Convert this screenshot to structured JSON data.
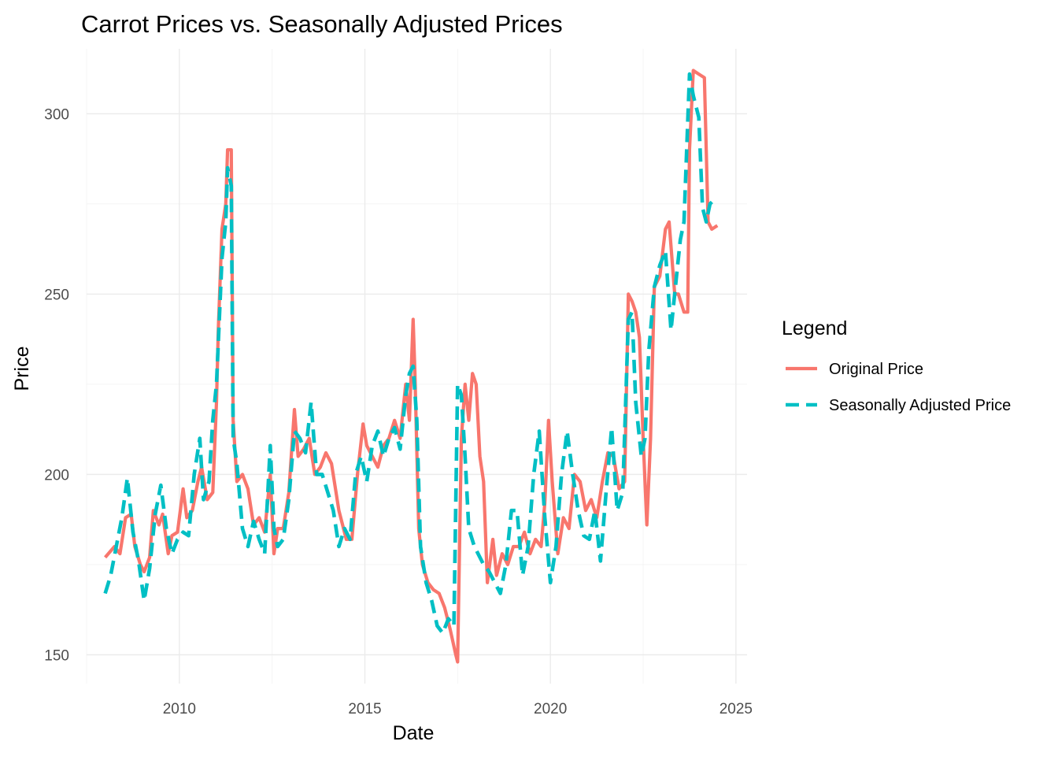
{
  "chart_data": {
    "type": "line",
    "title": "Carrot Prices vs. Seasonally Adjusted Prices",
    "xlabel": "Date",
    "ylabel": "Price",
    "xlim": [
      2007.5,
      2025.3
    ],
    "ylim": [
      142,
      318
    ],
    "x_ticks": [
      2010,
      2015,
      2020,
      2025
    ],
    "y_ticks": [
      150,
      200,
      250,
      300
    ],
    "grid": true,
    "legend": {
      "title": "Legend",
      "position": "right",
      "entries": [
        "Original Price",
        "Seasonally Adjusted Price"
      ]
    },
    "colors": {
      "original": "#F8766D",
      "adjusted": "#00BFC4"
    },
    "series": [
      {
        "name": "Original Price",
        "style": "solid",
        "color": "#F8766D",
        "x": [
          2008.0,
          2008.25,
          2008.4,
          2008.55,
          2008.7,
          2008.8,
          2008.95,
          2009.05,
          2009.2,
          2009.3,
          2009.45,
          2009.55,
          2009.7,
          2009.8,
          2009.95,
          2010.1,
          2010.2,
          2010.35,
          2010.5,
          2010.6,
          2010.75,
          2010.9,
          2011.0,
          2011.05,
          2011.15,
          2011.25,
          2011.3,
          2011.4,
          2011.45,
          2011.55,
          2011.7,
          2011.85,
          2012.0,
          2012.15,
          2012.3,
          2012.45,
          2012.55,
          2012.65,
          2012.8,
          2012.95,
          2013.1,
          2013.2,
          2013.35,
          2013.5,
          2013.65,
          2013.8,
          2013.95,
          2014.1,
          2014.3,
          2014.5,
          2014.65,
          2014.8,
          2014.95,
          2015.05,
          2015.2,
          2015.35,
          2015.5,
          2015.65,
          2015.8,
          2015.95,
          2016.1,
          2016.2,
          2016.3,
          2016.35,
          2016.45,
          2016.55,
          2016.7,
          2016.85,
          2017.0,
          2017.15,
          2017.3,
          2017.45,
          2017.5,
          2017.6,
          2017.7,
          2017.8,
          2017.9,
          2018.0,
          2018.1,
          2018.2,
          2018.3,
          2018.45,
          2018.55,
          2018.7,
          2018.85,
          2019.0,
          2019.15,
          2019.3,
          2019.45,
          2019.6,
          2019.75,
          2019.85,
          2019.95,
          2020.05,
          2020.2,
          2020.35,
          2020.5,
          2020.65,
          2020.8,
          2020.95,
          2021.1,
          2021.25,
          2021.4,
          2021.55,
          2021.7,
          2021.85,
          2022.0,
          2022.1,
          2022.2,
          2022.3,
          2022.4,
          2022.5,
          2022.6,
          2022.7,
          2022.8,
          2022.95,
          2023.1,
          2023.2,
          2023.35,
          2023.45,
          2023.6,
          2023.7,
          2023.75,
          2023.85,
          2024.0,
          2024.15,
          2024.25,
          2024.35,
          2024.5
        ],
        "y": [
          177,
          180,
          178,
          188,
          189,
          180,
          175,
          173,
          177,
          190,
          186,
          189,
          178,
          183,
          184,
          196,
          188,
          190,
          198,
          202,
          193,
          195,
          220,
          240,
          268,
          275,
          290,
          290,
          215,
          198,
          200,
          196,
          186,
          188,
          184,
          200,
          178,
          185,
          185,
          195,
          218,
          205,
          207,
          210,
          200,
          202,
          206,
          203,
          190,
          182,
          182,
          200,
          214,
          208,
          205,
          202,
          208,
          210,
          215,
          210,
          225,
          215,
          243,
          228,
          185,
          175,
          170,
          168,
          167,
          163,
          157,
          150,
          148,
          210,
          225,
          215,
          228,
          225,
          205,
          198,
          170,
          182,
          172,
          178,
          175,
          180,
          180,
          184,
          178,
          182,
          180,
          192,
          215,
          198,
          178,
          188,
          185,
          200,
          198,
          190,
          193,
          188,
          198,
          206,
          205,
          196,
          198,
          250,
          248,
          245,
          238,
          210,
          186,
          210,
          252,
          255,
          268,
          270,
          250,
          250,
          245,
          245,
          290,
          312,
          311,
          310,
          270,
          268,
          269
        ],
        "values_note": ""
      },
      {
        "name": "Seasonally Adjusted Price",
        "style": "dashed",
        "color": "#00BFC4",
        "x": [
          2008.0,
          2008.15,
          2008.3,
          2008.45,
          2008.6,
          2008.75,
          2008.9,
          2009.05,
          2009.2,
          2009.35,
          2009.5,
          2009.65,
          2009.8,
          2009.95,
          2010.1,
          2010.25,
          2010.4,
          2010.55,
          2010.65,
          2010.8,
          2010.9,
          2011.0,
          2011.15,
          2011.25,
          2011.3,
          2011.4,
          2011.45,
          2011.55,
          2011.7,
          2011.85,
          2012.0,
          2012.15,
          2012.3,
          2012.45,
          2012.55,
          2012.65,
          2012.8,
          2012.95,
          2013.1,
          2013.25,
          2013.4,
          2013.55,
          2013.7,
          2013.85,
          2014.0,
          2014.15,
          2014.3,
          2014.45,
          2014.6,
          2014.75,
          2014.9,
          2015.05,
          2015.2,
          2015.35,
          2015.5,
          2015.65,
          2015.8,
          2015.95,
          2016.1,
          2016.2,
          2016.3,
          2016.4,
          2016.5,
          2016.65,
          2016.8,
          2016.95,
          2017.1,
          2017.25,
          2017.4,
          2017.5,
          2017.6,
          2017.7,
          2017.8,
          2017.95,
          2018.05,
          2018.2,
          2018.35,
          2018.5,
          2018.65,
          2018.8,
          2018.95,
          2019.1,
          2019.25,
          2019.4,
          2019.55,
          2019.7,
          2019.85,
          2020.0,
          2020.15,
          2020.3,
          2020.45,
          2020.6,
          2020.75,
          2020.9,
          2021.05,
          2021.2,
          2021.35,
          2021.5,
          2021.65,
          2021.8,
          2021.95,
          2022.1,
          2022.2,
          2022.3,
          2022.45,
          2022.55,
          2022.65,
          2022.8,
          2022.95,
          2023.1,
          2023.25,
          2023.4,
          2023.5,
          2023.6,
          2023.75,
          2023.85,
          2024.0,
          2024.1,
          2024.2,
          2024.3,
          2024.4,
          2024.5
        ],
        "y": [
          167,
          172,
          180,
          188,
          199,
          184,
          176,
          165,
          174,
          189,
          197,
          185,
          178,
          182,
          184,
          183,
          200,
          210,
          193,
          198,
          215,
          225,
          260,
          270,
          285,
          280,
          210,
          203,
          185,
          180,
          187,
          182,
          178,
          208,
          185,
          180,
          182,
          193,
          212,
          210,
          206,
          220,
          200,
          200,
          195,
          190,
          180,
          185,
          182,
          200,
          205,
          198,
          208,
          212,
          205,
          210,
          213,
          207,
          222,
          228,
          230,
          215,
          180,
          170,
          165,
          158,
          156,
          160,
          158,
          225,
          222,
          205,
          185,
          180,
          178,
          175,
          173,
          170,
          167,
          175,
          190,
          190,
          172,
          180,
          200,
          212,
          188,
          170,
          180,
          200,
          212,
          200,
          190,
          183,
          182,
          190,
          176,
          195,
          213,
          190,
          195,
          243,
          245,
          220,
          205,
          210,
          234,
          252,
          258,
          262,
          240,
          255,
          265,
          270,
          311,
          305,
          299,
          274,
          270,
          275,
          276,
          276
        ],
        "values_note": ""
      }
    ]
  }
}
